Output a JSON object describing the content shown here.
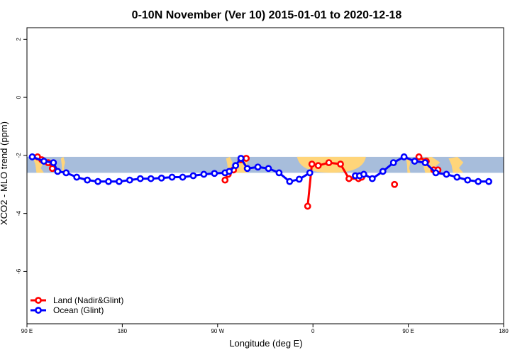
{
  "chart_data": {
    "type": "line",
    "title": "0-10N November (Ver 10)   2015-01-01 to 2020-12-18",
    "xlabel": "Longitude (deg E)",
    "ylabel": "XCO2 - MLO trend (ppm)",
    "xlim": [
      90,
      540
    ],
    "ylim": [
      -7.8,
      2.4
    ],
    "x_ticks": [
      {
        "value": 90,
        "label": "90 E"
      },
      {
        "value": 180,
        "label": "180"
      },
      {
        "value": 270,
        "label": "90 W"
      },
      {
        "value": 360,
        "label": "0"
      },
      {
        "value": 450,
        "label": "90 E"
      },
      {
        "value": 540,
        "label": "180"
      }
    ],
    "y_ticks": [
      {
        "value": 2,
        "label": "2"
      },
      {
        "value": 0,
        "label": "0"
      },
      {
        "value": -2,
        "label": "-2"
      },
      {
        "value": -4,
        "label": "-4"
      },
      {
        "value": -6,
        "label": "-6"
      }
    ],
    "band": {
      "y_range": [
        -2.6,
        -2.05
      ],
      "ocean_color": "#a7bddb",
      "land_color": "#ffd57a"
    },
    "land_regions": [
      {
        "x_range": [
          96,
          106
        ],
        "shape": "patchy"
      },
      {
        "x_range": [
          122,
          126
        ],
        "shape": "patchy"
      },
      {
        "x_range": [
          278,
          284
        ],
        "shape": "patchy"
      },
      {
        "x_range": [
          284,
          298
        ],
        "shape": "wedge"
      },
      {
        "x_range": [
          345,
          410
        ],
        "shape": "arc"
      },
      {
        "x_range": [
          448,
          452
        ],
        "shape": "patchy"
      },
      {
        "x_range": [
          460,
          480
        ],
        "shape": "patchy"
      },
      {
        "x_range": [
          488,
          502
        ],
        "shape": "patchy"
      }
    ],
    "legend": {
      "position": "bottom-left"
    },
    "series": [
      {
        "name": "Land (Nadir&Glint)",
        "color": "#ff0000",
        "segments": [
          [
            [
              100,
              -2.05
            ],
            [
              104,
              -2.15
            ]
          ],
          [
            [
              110,
              -2.25
            ],
            [
              114,
              -2.45
            ]
          ],
          [
            [
              277,
              -2.85
            ],
            [
              280,
              -2.65
            ],
            [
              285,
              -2.5
            ]
          ],
          [
            [
              292,
              -2.15
            ],
            [
              297,
              -2.1
            ]
          ],
          [
            [
              355,
              -3.75
            ],
            [
              359,
              -2.3
            ]
          ],
          [
            [
              365,
              -2.35
            ],
            [
              375,
              -2.25
            ],
            [
              386,
              -2.3
            ],
            [
              394,
              -2.8
            ],
            [
              403,
              -2.8
            ],
            [
              406,
              -2.75
            ]
          ],
          [
            [
              437,
              -3.0
            ]
          ],
          [
            [
              460,
              -2.05
            ],
            [
              467,
              -2.2
            ]
          ],
          [
            [
              474,
              -2.5
            ],
            [
              478,
              -2.5
            ]
          ]
        ]
      },
      {
        "name": "Ocean (Glint)",
        "color": "#0000ff",
        "segments": [
          [
            [
              95,
              -2.05
            ],
            [
              106,
              -2.2
            ],
            [
              115,
              -2.25
            ],
            [
              119,
              -2.55
            ],
            [
              127,
              -2.6
            ],
            [
              137,
              -2.75
            ],
            [
              147,
              -2.85
            ],
            [
              157,
              -2.9
            ],
            [
              167,
              -2.9
            ],
            [
              177,
              -2.9
            ],
            [
              187,
              -2.85
            ],
            [
              197,
              -2.8
            ],
            [
              207,
              -2.8
            ],
            [
              217,
              -2.78
            ],
            [
              227,
              -2.75
            ],
            [
              237,
              -2.75
            ],
            [
              247,
              -2.7
            ],
            [
              257,
              -2.65
            ],
            [
              267,
              -2.62
            ],
            [
              277,
              -2.6
            ],
            [
              281,
              -2.55
            ],
            [
              287,
              -2.35
            ],
            [
              292,
              -2.1
            ],
            [
              298,
              -2.45
            ],
            [
              308,
              -2.4
            ],
            [
              318,
              -2.45
            ],
            [
              328,
              -2.6
            ],
            [
              338,
              -2.9
            ],
            [
              347,
              -2.82
            ],
            [
              357,
              -2.6
            ]
          ],
          [
            [
              400,
              -2.7
            ],
            [
              404,
              -2.7
            ],
            [
              408,
              -2.65
            ],
            [
              416,
              -2.8
            ],
            [
              426,
              -2.55
            ],
            [
              436,
              -2.25
            ],
            [
              446,
              -2.05
            ],
            [
              456,
              -2.2
            ],
            [
              466,
              -2.25
            ],
            [
              476,
              -2.6
            ],
            [
              486,
              -2.65
            ],
            [
              496,
              -2.75
            ],
            [
              506,
              -2.85
            ],
            [
              516,
              -2.9
            ],
            [
              526,
              -2.9
            ]
          ]
        ]
      }
    ]
  }
}
